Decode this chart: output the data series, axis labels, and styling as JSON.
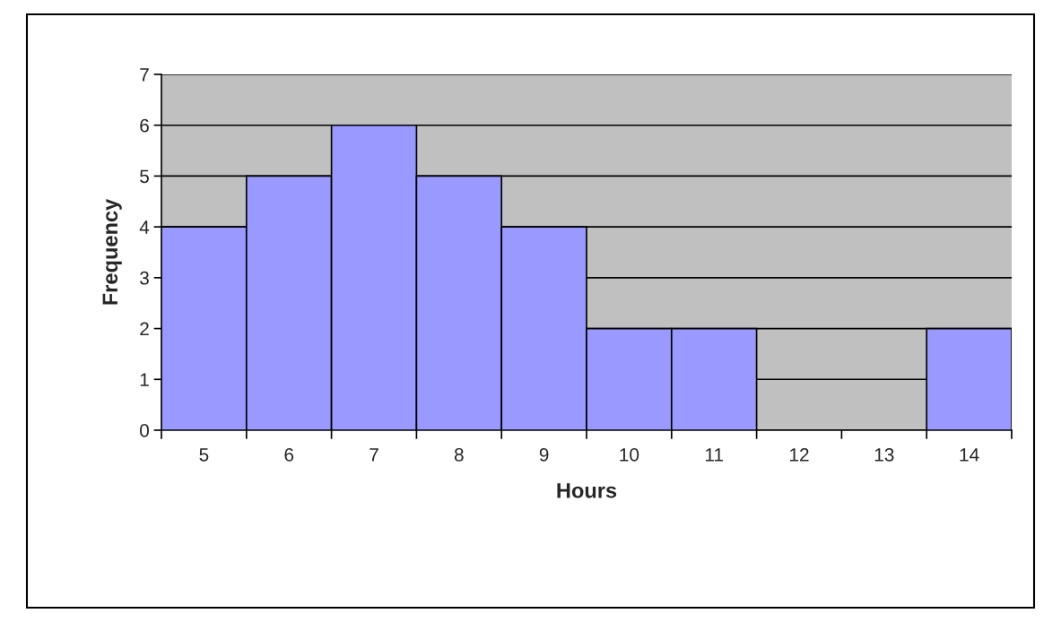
{
  "chart_data": {
    "type": "bar",
    "xlabel": "Hours",
    "ylabel": "Frequency",
    "categories": [
      "5",
      "6",
      "7",
      "8",
      "9",
      "10",
      "11",
      "12",
      "13",
      "14"
    ],
    "values": [
      4,
      5,
      6,
      5,
      4,
      2,
      2,
      0,
      0,
      2
    ],
    "color": "#9999ff",
    "ylim": [
      0,
      7
    ],
    "yticks": [
      0,
      1,
      2,
      3,
      4,
      5,
      6,
      7
    ],
    "grid": "y"
  }
}
